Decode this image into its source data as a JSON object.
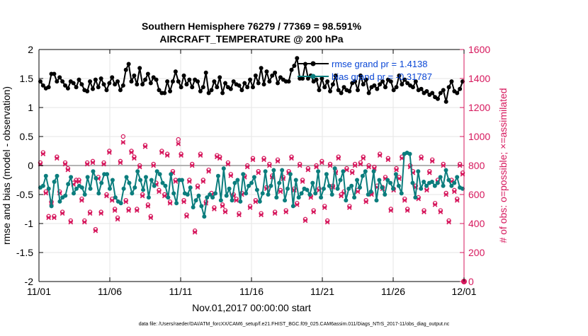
{
  "chart_data": {
    "type": "line",
    "title_line1": "Southern Hemisphere 76279 / 77369 = 98.591%",
    "title_line2": "AIRCRAFT_TEMPERATURE @ 200 hPa",
    "xlabel": "Nov.01,2017 00:00:00 start",
    "ylabel_left": "rmse and bias (model - observation)",
    "ylabel_right": "# of obs: o=possible; ×=assimilated",
    "footer": "data file: /Users/raeder/DAI/ATM_forcXX/CAM6_setup/f.e21.FHIST_BGC.f09_025.CAM6assim.011/Diags_NTrS_2017-11/obs_diag_output.nc",
    "x_ticks": [
      "11/01",
      "11/06",
      "11/11",
      "11/16",
      "11/21",
      "11/26",
      "12/01"
    ],
    "x_tick_days": [
      0,
      5,
      10,
      15,
      20,
      25,
      30
    ],
    "y_left_ticks": [
      "-2",
      "-1.5",
      "-1",
      "-0.5",
      "0",
      "0.5",
      "1",
      "1.5",
      "2"
    ],
    "y_left_tick_values": [
      -2,
      -1.5,
      -1,
      -0.5,
      0,
      0.5,
      1,
      1.5,
      2
    ],
    "y_right_ticks": [
      "0",
      "200",
      "400",
      "600",
      "800",
      "1000",
      "1200",
      "1400",
      "1600"
    ],
    "y_right_tick_values": [
      0,
      200,
      400,
      600,
      800,
      1000,
      1200,
      1400,
      1600
    ],
    "xlim": [
      0,
      30
    ],
    "ylim_left": [
      -2,
      2
    ],
    "ylim_right": [
      0,
      1600
    ],
    "legend": [
      {
        "label": "rmse grand pr = 1.4138",
        "color": "#000000"
      },
      {
        "label": "bias grand pr = -0.31787",
        "color": "#0b7d7d"
      }
    ],
    "colors": {
      "rmse": "#000000",
      "bias": "#0b7d7d",
      "obs": "#d6175c",
      "zero_line": "#b3b3b3",
      "grid": "#e6e6e6",
      "legend_text": "#0a47d6"
    },
    "series": [
      {
        "name": "rmse",
        "values": [
          1.45,
          1.38,
          1.33,
          1.35,
          1.58,
          1.58,
          1.45,
          1.52,
          1.45,
          1.38,
          1.33,
          1.45,
          1.42,
          1.35,
          1.48,
          1.4,
          1.3,
          1.28,
          1.45,
          1.32,
          1.48,
          1.35,
          1.5,
          1.4,
          1.3,
          1.42,
          1.52,
          1.4,
          1.45,
          1.3,
          1.38,
          1.65,
          1.75,
          1.45,
          1.55,
          1.4,
          1.68,
          1.4,
          1.48,
          1.58,
          1.42,
          1.52,
          1.48,
          1.3,
          1.25,
          1.25,
          1.45,
          1.28,
          1.45,
          1.62,
          1.45,
          1.35,
          1.55,
          1.4,
          1.48,
          1.35,
          1.48,
          1.45,
          1.28,
          1.35,
          1.6,
          1.25,
          1.3,
          1.45,
          1.35,
          1.52,
          1.25,
          1.42,
          1.35,
          1.32,
          1.45,
          1.4,
          1.38,
          1.3,
          1.42,
          1.35,
          1.48,
          1.35,
          1.55,
          1.42,
          1.68,
          1.4,
          1.62,
          1.45,
          1.55,
          1.6,
          1.42,
          1.52,
          1.48,
          1.45,
          1.45,
          1.65,
          1.72,
          1.85,
          1.5,
          1.5,
          1.75,
          1.5,
          1.55,
          1.45,
          1.48,
          1.3,
          1.5,
          1.35,
          1.45,
          1.28,
          1.4,
          1.55,
          1.3,
          1.25,
          1.35,
          1.3,
          1.28,
          1.42,
          1.45,
          1.3,
          1.55,
          1.4,
          1.48,
          1.25,
          1.35,
          1.38,
          1.32,
          1.4,
          1.45,
          1.35,
          1.48,
          1.45,
          1.3,
          1.35,
          1.55,
          1.4,
          1.48,
          1.42,
          1.38,
          1.35,
          1.45,
          1.3,
          1.32,
          1.25,
          1.28,
          1.22,
          1.25,
          1.18,
          1.15,
          1.25,
          1.3,
          1.1,
          1.35,
          1.45,
          1.28,
          1.25,
          1.32,
          1.45
        ]
      },
      {
        "name": "bias",
        "values": [
          -0.38,
          -0.35,
          -0.18,
          -0.4,
          -0.7,
          -0.28,
          -0.18,
          -0.62,
          -0.55,
          -0.52,
          -0.32,
          -0.2,
          -0.48,
          -0.4,
          -0.35,
          -0.38,
          -0.5,
          -0.2,
          -0.4,
          -0.1,
          -0.22,
          -0.48,
          -0.3,
          -0.15,
          -0.15,
          -0.4,
          -0.25,
          -0.55,
          -0.62,
          -0.65,
          -0.4,
          -0.2,
          -0.3,
          -0.48,
          -0.38,
          -0.1,
          -0.25,
          -0.42,
          -0.2,
          -0.55,
          -0.25,
          -0.35,
          -0.1,
          -0.15,
          -0.3,
          -0.35,
          -0.55,
          -0.15,
          -0.48,
          -0.65,
          -0.25,
          -0.25,
          -0.48,
          -0.5,
          -0.38,
          -0.72,
          -0.6,
          -0.52,
          -0.7,
          -0.88,
          -0.55,
          -0.5,
          -0.55,
          -0.48,
          -0.18,
          -0.6,
          -0.05,
          -0.52,
          -0.4,
          -0.6,
          -0.3,
          -0.25,
          -0.62,
          -0.15,
          -0.48,
          -0.35,
          -0.3,
          -0.2,
          -0.42,
          -0.62,
          -0.48,
          -0.1,
          -0.5,
          -0.35,
          -0.08,
          -0.55,
          -0.3,
          -0.08,
          -0.6,
          -0.4,
          -0.15,
          -0.7,
          -0.25,
          -0.55,
          -0.48,
          -0.4,
          -0.42,
          -0.5,
          -0.3,
          -0.48,
          -0.1,
          -0.55,
          -0.4,
          -0.15,
          -0.35,
          -0.5,
          -0.05,
          -0.4,
          -0.25,
          -0.1,
          -0.6,
          -0.4,
          -0.35,
          -0.55,
          -0.25,
          -0.38,
          -0.18,
          -0.1,
          -0.5,
          -0.45,
          -0.1,
          -0.6,
          -0.25,
          -0.38,
          -0.5,
          -0.25,
          -0.3,
          -0.4,
          -0.15,
          -0.35,
          -0.48,
          0.2,
          0.22,
          0.2,
          -0.3,
          -0.55,
          -0.1,
          -0.4,
          -0.28,
          -0.35,
          -0.3,
          -0.28,
          -0.35,
          -0.3,
          -0.2,
          -0.35,
          -0.08,
          -0.25,
          -0.35,
          -0.3,
          -0.2,
          -0.38,
          -0.4
        ]
      },
      {
        "name": "obs_possible",
        "values": [
          820,
          890,
          620,
          450,
          550,
          450,
          860,
          620,
          480,
          820,
          780,
          420,
          680,
          700,
          700,
          570,
          420,
          820,
          480,
          830,
          360,
          720,
          480,
          820,
          600,
          900,
          570,
          500,
          440,
          830,
          1000,
          560,
          500,
          900,
          860,
          500,
          800,
          600,
          940,
          530,
          450,
          810,
          680,
          630,
          900,
          600,
          880,
          550,
          760,
          700,
          980,
          880,
          560,
          460,
          700,
          810,
          350,
          660,
          880,
          700,
          550,
          770,
          610,
          510,
          870,
          860,
          530,
          490,
          820,
          740,
          600,
          570,
          470,
          610,
          730,
          800,
          520,
          850,
          560,
          760,
          470,
          850,
          650,
          810,
          730,
          480,
          840,
          630,
          720,
          490,
          760,
          860,
          640,
          540,
          810,
          700,
          430,
          780,
          590,
          490,
          800,
          640,
          830,
          520,
          420,
          810,
          660,
          760,
          860,
          600,
          620,
          780,
          520,
          760,
          810,
          630,
          820,
          860,
          560,
          800,
          610,
          790,
          660,
          880,
          650,
          720,
          850,
          500,
          640,
          780,
          720,
          860,
          570,
          500,
          800,
          760,
          660,
          580,
          860,
          490,
          640,
          760,
          840,
          540,
          700,
          490,
          810,
          610,
          420,
          700,
          630,
          570,
          810,
          750
        ]
      },
      {
        "name": "obs_assimilated",
        "values": [
          810,
          880,
          610,
          440,
          540,
          440,
          850,
          610,
          470,
          810,
          770,
          410,
          670,
          690,
          690,
          560,
          410,
          810,
          470,
          820,
          350,
          710,
          470,
          810,
          590,
          890,
          560,
          490,
          430,
          820,
          960,
          550,
          490,
          890,
          850,
          490,
          790,
          590,
          930,
          520,
          440,
          800,
          670,
          620,
          890,
          590,
          870,
          540,
          750,
          690,
          950,
          870,
          550,
          450,
          690,
          800,
          340,
          650,
          870,
          690,
          540,
          760,
          600,
          500,
          860,
          850,
          520,
          480,
          810,
          730,
          590,
          560,
          460,
          600,
          720,
          790,
          510,
          840,
          550,
          750,
          460,
          840,
          640,
          800,
          720,
          470,
          830,
          620,
          710,
          480,
          750,
          850,
          630,
          530,
          800,
          690,
          420,
          770,
          580,
          480,
          790,
          630,
          820,
          510,
          410,
          800,
          650,
          750,
          850,
          590,
          610,
          770,
          510,
          750,
          800,
          620,
          810,
          850,
          550,
          790,
          600,
          780,
          650,
          870,
          640,
          710,
          840,
          490,
          630,
          770,
          710,
          850,
          560,
          490,
          790,
          750,
          650,
          570,
          850,
          480,
          630,
          750,
          830,
          530,
          690,
          480,
          800,
          600,
          410,
          690,
          620,
          560,
          800,
          740
        ]
      }
    ]
  }
}
